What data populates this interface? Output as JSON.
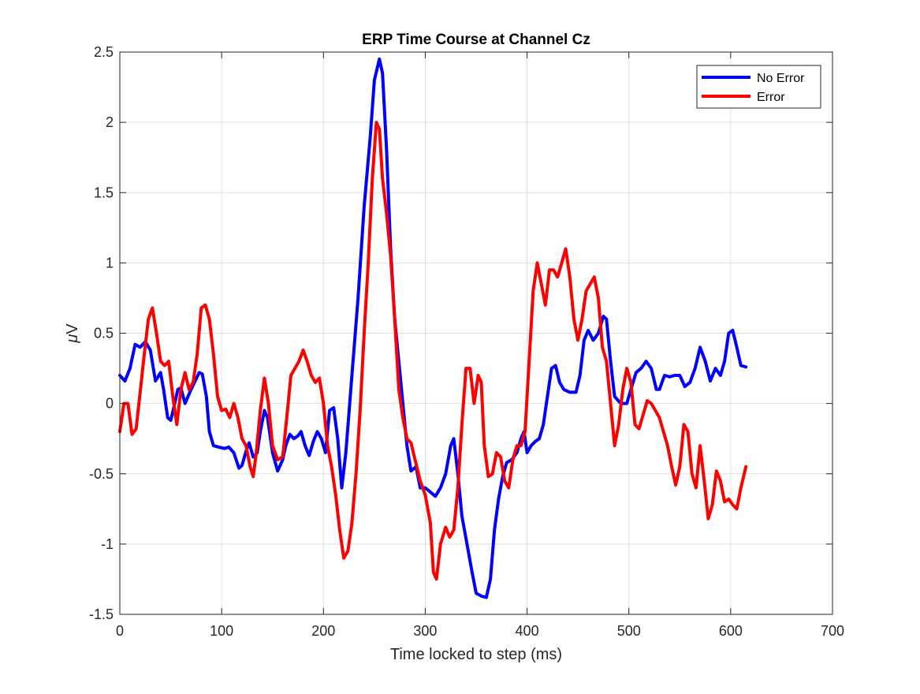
{
  "chart_data": {
    "type": "line",
    "title": "ERP Time Course at Channel Cz",
    "xlabel": "Time locked to step (ms)",
    "ylabel_prefix": "μ",
    "ylabel_suffix": "V",
    "xlim": [
      0,
      700
    ],
    "ylim": [
      -1.5,
      2.5
    ],
    "xticks": [
      0,
      100,
      200,
      300,
      400,
      500,
      600,
      700
    ],
    "yticks": [
      -1.5,
      -1,
      -0.5,
      0,
      0.5,
      1,
      1.5,
      2,
      2.5
    ],
    "xtick_labels": [
      "0",
      "100",
      "200",
      "300",
      "400",
      "500",
      "600",
      "700"
    ],
    "ytick_labels": [
      "-1.5",
      "-1",
      "-0.5",
      "0",
      "0.5",
      "1",
      "1.5",
      "2",
      "2.5"
    ],
    "grid": true,
    "legend_position": "top-right",
    "series": [
      {
        "name": "No Error",
        "color": "#0000ff",
        "points": [
          [
            0,
            0.2
          ],
          [
            5,
            0.16
          ],
          [
            10,
            0.25
          ],
          [
            15,
            0.42
          ],
          [
            20,
            0.4
          ],
          [
            25,
            0.44
          ],
          [
            30,
            0.38
          ],
          [
            35,
            0.16
          ],
          [
            40,
            0.22
          ],
          [
            43,
            0.1
          ],
          [
            47,
            -0.1
          ],
          [
            50,
            -0.12
          ],
          [
            53,
            -0.03
          ],
          [
            57,
            0.1
          ],
          [
            60,
            0.11
          ],
          [
            64,
            0.0
          ],
          [
            67,
            0.05
          ],
          [
            70,
            0.1
          ],
          [
            74,
            0.16
          ],
          [
            78,
            0.22
          ],
          [
            81,
            0.21
          ],
          [
            85,
            0.05
          ],
          [
            88,
            -0.2
          ],
          [
            92,
            -0.3
          ],
          [
            97,
            -0.31
          ],
          [
            103,
            -0.32
          ],
          [
            107,
            -0.31
          ],
          [
            112,
            -0.35
          ],
          [
            117,
            -0.46
          ],
          [
            120,
            -0.44
          ],
          [
            124,
            -0.34
          ],
          [
            127,
            -0.28
          ],
          [
            131,
            -0.38
          ],
          [
            135,
            -0.35
          ],
          [
            138,
            -0.2
          ],
          [
            142,
            -0.05
          ],
          [
            145,
            -0.1
          ],
          [
            150,
            -0.35
          ],
          [
            155,
            -0.48
          ],
          [
            160,
            -0.4
          ],
          [
            163,
            -0.3
          ],
          [
            167,
            -0.22
          ],
          [
            171,
            -0.25
          ],
          [
            175,
            -0.23
          ],
          [
            178,
            -0.2
          ],
          [
            182,
            -0.3
          ],
          [
            186,
            -0.37
          ],
          [
            190,
            -0.27
          ],
          [
            194,
            -0.2
          ],
          [
            198,
            -0.25
          ],
          [
            202,
            -0.35
          ],
          [
            206,
            -0.05
          ],
          [
            210,
            -0.03
          ],
          [
            214,
            -0.25
          ],
          [
            218,
            -0.6
          ],
          [
            222,
            -0.35
          ],
          [
            228,
            0.2
          ],
          [
            234,
            0.75
          ],
          [
            240,
            1.4
          ],
          [
            246,
            1.9
          ],
          [
            250,
            2.3
          ],
          [
            255,
            2.45
          ],
          [
            258,
            2.35
          ],
          [
            262,
            1.8
          ],
          [
            266,
            1.1
          ],
          [
            270,
            0.6
          ],
          [
            274,
            0.3
          ],
          [
            278,
            0.0
          ],
          [
            282,
            -0.3
          ],
          [
            286,
            -0.48
          ],
          [
            291,
            -0.45
          ],
          [
            295,
            -0.6
          ],
          [
            300,
            -0.6
          ],
          [
            305,
            -0.63
          ],
          [
            310,
            -0.66
          ],
          [
            315,
            -0.6
          ],
          [
            320,
            -0.5
          ],
          [
            325,
            -0.3
          ],
          [
            328,
            -0.25
          ],
          [
            332,
            -0.5
          ],
          [
            336,
            -0.8
          ],
          [
            341,
            -1.0
          ],
          [
            346,
            -1.2
          ],
          [
            350,
            -1.35
          ],
          [
            355,
            -1.37
          ],
          [
            360,
            -1.38
          ],
          [
            364,
            -1.25
          ],
          [
            368,
            -0.9
          ],
          [
            372,
            -0.68
          ],
          [
            376,
            -0.52
          ],
          [
            380,
            -0.42
          ],
          [
            385,
            -0.4
          ],
          [
            390,
            -0.35
          ],
          [
            394,
            -0.25
          ],
          [
            397,
            -0.2
          ],
          [
            400,
            -0.35
          ],
          [
            404,
            -0.3
          ],
          [
            408,
            -0.27
          ],
          [
            412,
            -0.25
          ],
          [
            416,
            -0.15
          ],
          [
            420,
            0.05
          ],
          [
            424,
            0.25
          ],
          [
            428,
            0.27
          ],
          [
            432,
            0.15
          ],
          [
            436,
            0.1
          ],
          [
            442,
            0.08
          ],
          [
            448,
            0.08
          ],
          [
            452,
            0.2
          ],
          [
            456,
            0.45
          ],
          [
            460,
            0.52
          ],
          [
            465,
            0.45
          ],
          [
            470,
            0.5
          ],
          [
            475,
            0.62
          ],
          [
            478,
            0.6
          ],
          [
            482,
            0.3
          ],
          [
            486,
            0.05
          ],
          [
            492,
            0.0
          ],
          [
            498,
            0.0
          ],
          [
            502,
            0.1
          ],
          [
            507,
            0.22
          ],
          [
            512,
            0.25
          ],
          [
            517,
            0.3
          ],
          [
            522,
            0.25
          ],
          [
            527,
            0.1
          ],
          [
            530,
            0.1
          ],
          [
            535,
            0.2
          ],
          [
            540,
            0.19
          ],
          [
            545,
            0.2
          ],
          [
            550,
            0.2
          ],
          [
            555,
            0.12
          ],
          [
            560,
            0.15
          ],
          [
            565,
            0.25
          ],
          [
            570,
            0.4
          ],
          [
            575,
            0.3
          ],
          [
            580,
            0.16
          ],
          [
            585,
            0.25
          ],
          [
            590,
            0.2
          ],
          [
            594,
            0.3
          ],
          [
            598,
            0.5
          ],
          [
            602,
            0.52
          ],
          [
            606,
            0.4
          ],
          [
            610,
            0.27
          ],
          [
            615,
            0.26
          ]
        ]
      },
      {
        "name": "Error",
        "color": "#ff0000",
        "points": [
          [
            0,
            -0.2
          ],
          [
            4,
            0.0
          ],
          [
            8,
            0.0
          ],
          [
            12,
            -0.22
          ],
          [
            16,
            -0.18
          ],
          [
            20,
            0.08
          ],
          [
            24,
            0.35
          ],
          [
            28,
            0.6
          ],
          [
            32,
            0.68
          ],
          [
            36,
            0.5
          ],
          [
            40,
            0.3
          ],
          [
            44,
            0.27
          ],
          [
            48,
            0.3
          ],
          [
            52,
            0.05
          ],
          [
            56,
            -0.15
          ],
          [
            60,
            0.1
          ],
          [
            64,
            0.22
          ],
          [
            68,
            0.1
          ],
          [
            72,
            0.15
          ],
          [
            76,
            0.35
          ],
          [
            80,
            0.68
          ],
          [
            84,
            0.7
          ],
          [
            88,
            0.6
          ],
          [
            92,
            0.35
          ],
          [
            96,
            0.05
          ],
          [
            100,
            -0.05
          ],
          [
            104,
            -0.04
          ],
          [
            108,
            -0.1
          ],
          [
            112,
            0.0
          ],
          [
            116,
            -0.1
          ],
          [
            120,
            -0.25
          ],
          [
            124,
            -0.3
          ],
          [
            128,
            -0.45
          ],
          [
            131,
            -0.52
          ],
          [
            134,
            -0.35
          ],
          [
            138,
            -0.05
          ],
          [
            142,
            0.18
          ],
          [
            146,
            0.0
          ],
          [
            150,
            -0.3
          ],
          [
            155,
            -0.4
          ],
          [
            160,
            -0.38
          ],
          [
            164,
            -0.1
          ],
          [
            168,
            0.2
          ],
          [
            172,
            0.25
          ],
          [
            176,
            0.3
          ],
          [
            180,
            0.38
          ],
          [
            184,
            0.3
          ],
          [
            188,
            0.2
          ],
          [
            192,
            0.15
          ],
          [
            196,
            0.18
          ],
          [
            200,
            0.0
          ],
          [
            204,
            -0.3
          ],
          [
            208,
            -0.45
          ],
          [
            212,
            -0.65
          ],
          [
            216,
            -0.9
          ],
          [
            220,
            -1.1
          ],
          [
            224,
            -1.05
          ],
          [
            228,
            -0.85
          ],
          [
            232,
            -0.5
          ],
          [
            236,
            -0.05
          ],
          [
            240,
            0.5
          ],
          [
            244,
            1.0
          ],
          [
            248,
            1.6
          ],
          [
            252,
            2.0
          ],
          [
            255,
            1.95
          ],
          [
            258,
            1.6
          ],
          [
            262,
            1.35
          ],
          [
            266,
            1.05
          ],
          [
            270,
            0.6
          ],
          [
            274,
            0.1
          ],
          [
            278,
            -0.1
          ],
          [
            282,
            -0.25
          ],
          [
            286,
            -0.28
          ],
          [
            290,
            -0.4
          ],
          [
            295,
            -0.55
          ],
          [
            300,
            -0.65
          ],
          [
            305,
            -0.85
          ],
          [
            308,
            -1.2
          ],
          [
            311,
            -1.25
          ],
          [
            315,
            -1.0
          ],
          [
            320,
            -0.88
          ],
          [
            324,
            -0.95
          ],
          [
            328,
            -0.9
          ],
          [
            332,
            -0.6
          ],
          [
            336,
            -0.15
          ],
          [
            340,
            0.25
          ],
          [
            344,
            0.25
          ],
          [
            348,
            0.0
          ],
          [
            352,
            0.2
          ],
          [
            355,
            0.15
          ],
          [
            358,
            -0.3
          ],
          [
            362,
            -0.52
          ],
          [
            366,
            -0.5
          ],
          [
            370,
            -0.35
          ],
          [
            374,
            -0.38
          ],
          [
            378,
            -0.55
          ],
          [
            382,
            -0.6
          ],
          [
            386,
            -0.4
          ],
          [
            390,
            -0.3
          ],
          [
            394,
            -0.3
          ],
          [
            398,
            -0.2
          ],
          [
            402,
            0.3
          ],
          [
            406,
            0.8
          ],
          [
            410,
            1.0
          ],
          [
            414,
            0.85
          ],
          [
            418,
            0.7
          ],
          [
            422,
            0.95
          ],
          [
            426,
            0.95
          ],
          [
            430,
            0.9
          ],
          [
            434,
            1.0
          ],
          [
            438,
            1.1
          ],
          [
            442,
            0.9
          ],
          [
            446,
            0.6
          ],
          [
            450,
            0.45
          ],
          [
            454,
            0.6
          ],
          [
            458,
            0.8
          ],
          [
            462,
            0.85
          ],
          [
            466,
            0.9
          ],
          [
            470,
            0.75
          ],
          [
            474,
            0.4
          ],
          [
            478,
            0.3
          ],
          [
            482,
            0.0
          ],
          [
            486,
            -0.3
          ],
          [
            490,
            -0.15
          ],
          [
            494,
            0.1
          ],
          [
            498,
            0.25
          ],
          [
            502,
            0.15
          ],
          [
            506,
            -0.15
          ],
          [
            510,
            -0.18
          ],
          [
            514,
            -0.08
          ],
          [
            518,
            0.02
          ],
          [
            522,
            0.0
          ],
          [
            526,
            -0.05
          ],
          [
            530,
            -0.1
          ],
          [
            534,
            -0.2
          ],
          [
            538,
            -0.3
          ],
          [
            542,
            -0.45
          ],
          [
            546,
            -0.58
          ],
          [
            550,
            -0.45
          ],
          [
            554,
            -0.15
          ],
          [
            558,
            -0.2
          ],
          [
            562,
            -0.5
          ],
          [
            566,
            -0.6
          ],
          [
            570,
            -0.3
          ],
          [
            574,
            -0.55
          ],
          [
            578,
            -0.82
          ],
          [
            582,
            -0.72
          ],
          [
            586,
            -0.48
          ],
          [
            590,
            -0.55
          ],
          [
            594,
            -0.7
          ],
          [
            598,
            -0.68
          ],
          [
            602,
            -0.72
          ],
          [
            606,
            -0.75
          ],
          [
            610,
            -0.6
          ],
          [
            615,
            -0.45
          ]
        ]
      }
    ]
  }
}
